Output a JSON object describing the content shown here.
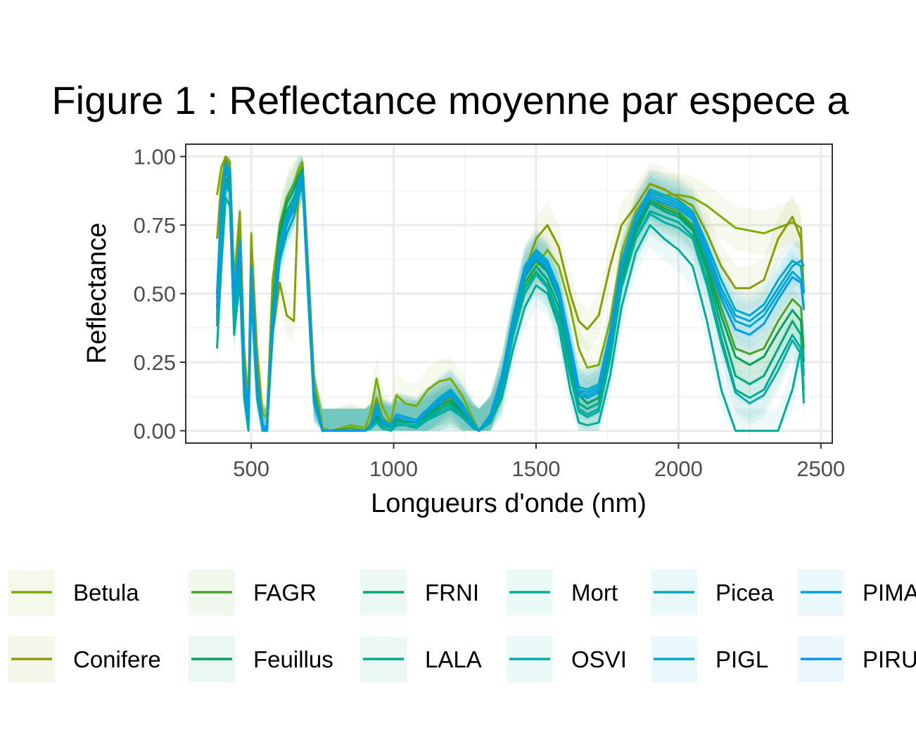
{
  "chart_data": {
    "type": "line",
    "title": "Figure 1 : Reflectance moyenne par espece a",
    "xlabel": "Longueurs d'onde (nm)",
    "ylabel": "Reflectance",
    "xlim": [
      270,
      2540
    ],
    "ylim": [
      -0.045,
      1.045
    ],
    "x_ticks": [
      500,
      1000,
      1500,
      2000,
      2500
    ],
    "x_tick_labels": [
      "500",
      "1000",
      "1500",
      "2000",
      "2500"
    ],
    "y_ticks": [
      0,
      0.25,
      0.5,
      0.75,
      1
    ],
    "y_tick_labels": [
      "0.00",
      "0.25",
      "0.50",
      "0.75",
      "1.00"
    ],
    "grid": true,
    "legend_position": "bottom",
    "x": [
      380,
      395,
      410,
      425,
      440,
      460,
      475,
      490,
      500,
      520,
      540,
      555,
      575,
      600,
      625,
      650,
      665,
      680,
      700,
      720,
      750,
      780,
      850,
      900,
      920,
      940,
      960,
      990,
      1010,
      1040,
      1080,
      1120,
      1160,
      1200,
      1240,
      1280,
      1300,
      1340,
      1380,
      1420,
      1460,
      1500,
      1540,
      1580,
      1620,
      1650,
      1680,
      1720,
      1760,
      1800,
      1850,
      1900,
      1950,
      2000,
      2050,
      2100,
      2150,
      2200,
      2250,
      2300,
      2350,
      2400,
      2430,
      2440
    ],
    "series": [
      {
        "name": "Betula",
        "color": "#7CAE00",
        "values": [
          0.86,
          0.96,
          1.0,
          0.98,
          0.55,
          0.8,
          0.3,
          0.1,
          0.72,
          0.3,
          0.06,
          0.05,
          0.55,
          0.75,
          0.85,
          0.9,
          0.95,
          0.98,
          0.6,
          0.2,
          0.01,
          0.0,
          0.02,
          0.01,
          0.07,
          0.19,
          0.09,
          0.03,
          0.13,
          0.1,
          0.09,
          0.15,
          0.18,
          0.19,
          0.13,
          0.04,
          0.0,
          0.05,
          0.2,
          0.4,
          0.52,
          0.6,
          0.66,
          0.6,
          0.45,
          0.3,
          0.23,
          0.24,
          0.4,
          0.65,
          0.8,
          0.87,
          0.86,
          0.86,
          0.85,
          0.82,
          0.78,
          0.74,
          0.73,
          0.72,
          0.74,
          0.76,
          0.74,
          0.5
        ]
      },
      {
        "name": "Conifere",
        "color": "#8A9D00",
        "values": [
          0.7,
          0.9,
          1.0,
          0.95,
          0.5,
          0.75,
          0.25,
          0.08,
          0.65,
          0.25,
          0.02,
          0.01,
          0.35,
          0.54,
          0.42,
          0.4,
          0.85,
          0.96,
          0.55,
          0.15,
          0.0,
          0.0,
          0.01,
          0.0,
          0.03,
          0.12,
          0.05,
          0.02,
          0.06,
          0.05,
          0.04,
          0.08,
          0.1,
          0.11,
          0.08,
          0.02,
          0.0,
          0.04,
          0.15,
          0.38,
          0.58,
          0.7,
          0.75,
          0.67,
          0.5,
          0.4,
          0.37,
          0.42,
          0.6,
          0.75,
          0.82,
          0.9,
          0.88,
          0.85,
          0.82,
          0.72,
          0.6,
          0.52,
          0.52,
          0.55,
          0.7,
          0.78,
          0.7,
          0.5
        ]
      },
      {
        "name": "FAGR",
        "color": "#49A529",
        "values": [
          0.5,
          0.8,
          0.95,
          0.9,
          0.45,
          0.68,
          0.2,
          0.05,
          0.6,
          0.2,
          0.01,
          0.0,
          0.45,
          0.75,
          0.85,
          0.9,
          0.93,
          0.96,
          0.55,
          0.15,
          0.0,
          0.0,
          0.01,
          0.0,
          0.02,
          0.06,
          0.03,
          0.01,
          0.04,
          0.04,
          0.03,
          0.07,
          0.1,
          0.12,
          0.08,
          0.02,
          0.0,
          0.05,
          0.2,
          0.42,
          0.58,
          0.64,
          0.6,
          0.5,
          0.3,
          0.15,
          0.12,
          0.14,
          0.35,
          0.6,
          0.75,
          0.85,
          0.82,
          0.8,
          0.75,
          0.62,
          0.45,
          0.3,
          0.28,
          0.3,
          0.4,
          0.48,
          0.45,
          0.3
        ]
      },
      {
        "name": "Feuillus",
        "color": "#00A25F",
        "values": [
          0.45,
          0.75,
          0.92,
          0.9,
          0.42,
          0.65,
          0.18,
          0.04,
          0.58,
          0.18,
          0.01,
          0.0,
          0.44,
          0.72,
          0.83,
          0.88,
          0.92,
          0.95,
          0.55,
          0.14,
          0.0,
          0.0,
          0.0,
          0.0,
          0.02,
          0.05,
          0.03,
          0.01,
          0.04,
          0.03,
          0.03,
          0.06,
          0.09,
          0.11,
          0.07,
          0.02,
          0.0,
          0.05,
          0.18,
          0.4,
          0.56,
          0.62,
          0.58,
          0.48,
          0.28,
          0.13,
          0.1,
          0.12,
          0.33,
          0.58,
          0.74,
          0.84,
          0.81,
          0.79,
          0.74,
          0.6,
          0.42,
          0.27,
          0.24,
          0.27,
          0.36,
          0.44,
          0.4,
          0.25
        ]
      },
      {
        "name": "FRNI",
        "color": "#00A878",
        "values": [
          0.4,
          0.72,
          0.9,
          0.88,
          0.4,
          0.62,
          0.16,
          0.03,
          0.55,
          0.15,
          0.0,
          0.0,
          0.4,
          0.7,
          0.8,
          0.85,
          0.9,
          0.93,
          0.52,
          0.12,
          0.0,
          0.0,
          0.0,
          0.0,
          0.01,
          0.04,
          0.02,
          0.01,
          0.03,
          0.02,
          0.02,
          0.05,
          0.08,
          0.1,
          0.06,
          0.01,
          0.0,
          0.04,
          0.16,
          0.38,
          0.54,
          0.6,
          0.55,
          0.45,
          0.25,
          0.1,
          0.08,
          0.1,
          0.3,
          0.55,
          0.72,
          0.83,
          0.8,
          0.78,
          0.73,
          0.58,
          0.38,
          0.2,
          0.17,
          0.2,
          0.3,
          0.4,
          0.35,
          0.2
        ]
      },
      {
        "name": "LALA",
        "color": "#00AC8E",
        "values": [
          0.42,
          0.74,
          0.91,
          0.89,
          0.41,
          0.63,
          0.17,
          0.03,
          0.56,
          0.16,
          0.0,
          0.0,
          0.38,
          0.68,
          0.78,
          0.84,
          0.89,
          0.92,
          0.5,
          0.11,
          0.0,
          0.0,
          0.0,
          0.0,
          0.01,
          0.03,
          0.02,
          0.01,
          0.03,
          0.02,
          0.02,
          0.05,
          0.07,
          0.09,
          0.05,
          0.01,
          0.0,
          0.04,
          0.15,
          0.36,
          0.52,
          0.58,
          0.53,
          0.42,
          0.22,
          0.08,
          0.06,
          0.08,
          0.28,
          0.53,
          0.7,
          0.8,
          0.78,
          0.76,
          0.71,
          0.55,
          0.34,
          0.15,
          0.12,
          0.15,
          0.25,
          0.35,
          0.3,
          0.15
        ]
      },
      {
        "name": "Mort",
        "color": "#00AD9A",
        "values": [
          0.3,
          0.6,
          0.85,
          0.82,
          0.35,
          0.55,
          0.12,
          0.0,
          0.5,
          0.12,
          0.0,
          0.0,
          0.35,
          0.62,
          0.72,
          0.78,
          0.85,
          0.9,
          0.48,
          0.1,
          0.0,
          0.0,
          0.0,
          0.0,
          0.01,
          0.03,
          0.01,
          0.0,
          0.02,
          0.02,
          0.01,
          0.04,
          0.06,
          0.08,
          0.05,
          0.01,
          0.0,
          0.03,
          0.12,
          0.3,
          0.45,
          0.53,
          0.5,
          0.38,
          0.15,
          0.03,
          0.02,
          0.03,
          0.2,
          0.45,
          0.65,
          0.75,
          0.7,
          0.66,
          0.6,
          0.4,
          0.15,
          0.0,
          0.0,
          0.0,
          0.0,
          0.15,
          0.3,
          0.1
        ]
      },
      {
        "name": "OSVI",
        "color": "#00AEA6",
        "values": [
          0.38,
          0.7,
          0.89,
          0.87,
          0.39,
          0.6,
          0.15,
          0.02,
          0.54,
          0.14,
          0.0,
          0.0,
          0.37,
          0.66,
          0.76,
          0.82,
          0.88,
          0.92,
          0.5,
          0.11,
          0.0,
          0.0,
          0.0,
          0.0,
          0.01,
          0.03,
          0.02,
          0.01,
          0.03,
          0.02,
          0.02,
          0.04,
          0.07,
          0.09,
          0.05,
          0.01,
          0.0,
          0.04,
          0.14,
          0.35,
          0.5,
          0.57,
          0.52,
          0.4,
          0.2,
          0.07,
          0.05,
          0.07,
          0.26,
          0.52,
          0.7,
          0.79,
          0.76,
          0.74,
          0.7,
          0.53,
          0.32,
          0.14,
          0.1,
          0.13,
          0.22,
          0.33,
          0.28,
          0.12
        ]
      },
      {
        "name": "Picea",
        "color": "#00ABBC",
        "values": [
          0.5,
          0.85,
          0.98,
          0.95,
          0.5,
          0.7,
          0.22,
          0.05,
          0.6,
          0.2,
          0.02,
          0.01,
          0.42,
          0.68,
          0.78,
          0.84,
          0.9,
          0.94,
          0.55,
          0.13,
          0.0,
          0.0,
          0.0,
          0.0,
          0.02,
          0.1,
          0.04,
          0.02,
          0.06,
          0.05,
          0.04,
          0.08,
          0.12,
          0.15,
          0.1,
          0.03,
          0.0,
          0.06,
          0.2,
          0.42,
          0.6,
          0.66,
          0.62,
          0.52,
          0.32,
          0.16,
          0.15,
          0.17,
          0.36,
          0.62,
          0.78,
          0.88,
          0.86,
          0.84,
          0.8,
          0.68,
          0.55,
          0.44,
          0.42,
          0.46,
          0.55,
          0.62,
          0.6,
          0.5
        ]
      },
      {
        "name": "PIGL",
        "color": "#00A7CE",
        "values": [
          0.45,
          0.8,
          0.96,
          0.93,
          0.47,
          0.67,
          0.2,
          0.04,
          0.58,
          0.18,
          0.01,
          0.0,
          0.4,
          0.66,
          0.76,
          0.82,
          0.89,
          0.93,
          0.54,
          0.12,
          0.0,
          0.0,
          0.0,
          0.0,
          0.02,
          0.08,
          0.03,
          0.02,
          0.05,
          0.04,
          0.03,
          0.07,
          0.11,
          0.14,
          0.09,
          0.02,
          0.0,
          0.05,
          0.19,
          0.4,
          0.58,
          0.64,
          0.6,
          0.5,
          0.3,
          0.14,
          0.13,
          0.15,
          0.34,
          0.6,
          0.77,
          0.86,
          0.84,
          0.82,
          0.78,
          0.65,
          0.5,
          0.4,
          0.38,
          0.42,
          0.5,
          0.58,
          0.55,
          0.45
        ]
      },
      {
        "name": "PIMA",
        "color": "#00A2DE",
        "values": [
          0.48,
          0.82,
          0.97,
          0.94,
          0.48,
          0.68,
          0.21,
          0.05,
          0.59,
          0.19,
          0.02,
          0.01,
          0.41,
          0.67,
          0.77,
          0.83,
          0.89,
          0.94,
          0.54,
          0.13,
          0.0,
          0.0,
          0.0,
          0.0,
          0.02,
          0.09,
          0.04,
          0.02,
          0.06,
          0.05,
          0.04,
          0.08,
          0.11,
          0.14,
          0.09,
          0.02,
          0.0,
          0.05,
          0.2,
          0.41,
          0.59,
          0.65,
          0.61,
          0.51,
          0.31,
          0.15,
          0.14,
          0.16,
          0.35,
          0.61,
          0.78,
          0.87,
          0.85,
          0.83,
          0.79,
          0.66,
          0.52,
          0.42,
          0.4,
          0.44,
          0.52,
          0.6,
          0.62,
          0.6
        ]
      },
      {
        "name": "PIRU",
        "color": "#009BE9",
        "values": [
          0.44,
          0.78,
          0.95,
          0.92,
          0.46,
          0.66,
          0.19,
          0.04,
          0.57,
          0.17,
          0.01,
          0.0,
          0.39,
          0.65,
          0.75,
          0.81,
          0.88,
          0.92,
          0.53,
          0.12,
          0.0,
          0.0,
          0.0,
          0.0,
          0.02,
          0.07,
          0.03,
          0.02,
          0.05,
          0.04,
          0.03,
          0.07,
          0.1,
          0.13,
          0.08,
          0.02,
          0.0,
          0.05,
          0.18,
          0.39,
          0.57,
          0.63,
          0.59,
          0.49,
          0.29,
          0.13,
          0.12,
          0.14,
          0.33,
          0.59,
          0.76,
          0.85,
          0.83,
          0.81,
          0.77,
          0.63,
          0.48,
          0.37,
          0.35,
          0.39,
          0.48,
          0.56,
          0.54,
          0.44
        ]
      }
    ],
    "legend": [
      {
        "label": "Betula",
        "color": "#7CAE00"
      },
      {
        "label": "FAGR",
        "color": "#49A529"
      },
      {
        "label": "FRNI",
        "color": "#00A878"
      },
      {
        "label": "Mort",
        "color": "#00AD9A"
      },
      {
        "label": "Picea",
        "color": "#00ABBC"
      },
      {
        "label": "PIMA",
        "color": "#00A2DE"
      },
      {
        "label": "Conifere",
        "color": "#8A9D00"
      },
      {
        "label": "Feuillus",
        "color": "#00A25F"
      },
      {
        "label": "LALA",
        "color": "#00AC8E"
      },
      {
        "label": "OSVI",
        "color": "#00AEA6"
      },
      {
        "label": "PIGL",
        "color": "#00A7CE"
      },
      {
        "label": "PIRU",
        "color": "#009BE9"
      }
    ]
  }
}
